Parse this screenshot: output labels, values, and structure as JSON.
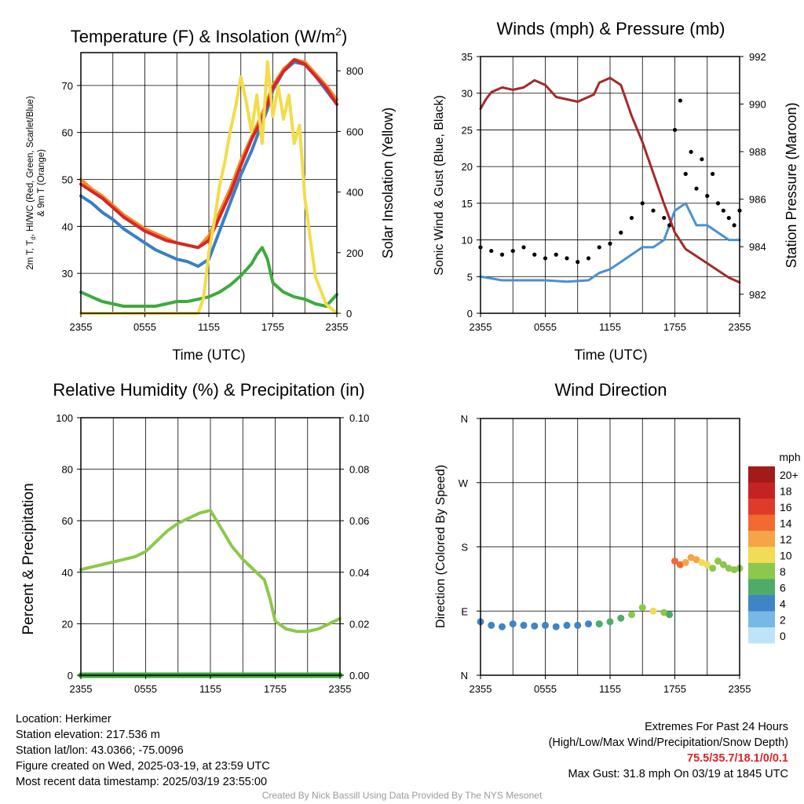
{
  "charts": {
    "temp": {
      "title_main": "Temperature (F) & Insolation (W/m",
      "title_sup": "2",
      "title_end": ")",
      "ylabel_line1": "2m T, T",
      "ylabel_sub": "d",
      "ylabel_line1_end": ", HI/WC (Red, Green, Scarlet/Blue)",
      "ylabel_line2": "& 9m T (Orange)",
      "ylabel_right": "Solar Insolation (Yellow)",
      "xlabel": "Time (UTC)"
    },
    "wind": {
      "title": "Winds (mph) & Pressure (mb)",
      "ylabel_left": "Sonic Wind & Gust (Blue, Black)",
      "ylabel_right": "Station Pressure (Maroon)",
      "xlabel": "Time (UTC)"
    },
    "rh": {
      "title": "Relative Humidity (%) & Precipitation (in)",
      "ylabel_left": "Percent & Precipitation"
    },
    "dir": {
      "title": "Wind Direction",
      "ylabel_left": "Direction (Colored By Speed)",
      "legend_title": "mph",
      "legend_labels": [
        "20+",
        "18",
        "16",
        "14",
        "12",
        "10",
        "8",
        "6",
        "4",
        "2",
        "0"
      ]
    }
  },
  "chart_data": [
    {
      "type": "line",
      "name": "temperature",
      "x_ticks": [
        "2355",
        "0555",
        "1155",
        "1755",
        "2355"
      ],
      "x_hours_range": [
        0,
        24
      ],
      "ylim": [
        21.5,
        77
      ],
      "y_ticks": [
        30,
        40,
        50,
        60,
        70
      ],
      "y2lim": [
        0,
        860
      ],
      "y2_ticks": [
        0,
        200,
        400,
        600,
        800
      ],
      "grid": true,
      "series": [
        {
          "color": "#3a7fc4",
          "axis": "left",
          "x": [
            0,
            1,
            2,
            3,
            4,
            5,
            6,
            7,
            8,
            9,
            10,
            11,
            12,
            13,
            14,
            15,
            16,
            17,
            17.5,
            18,
            19,
            20,
            21,
            22,
            23,
            24
          ],
          "y": [
            46.5,
            45,
            43,
            41.5,
            39.5,
            38,
            36.5,
            35,
            34,
            33,
            32.5,
            31.5,
            33,
            39,
            45,
            51,
            56,
            62,
            65,
            69,
            73,
            75,
            74.5,
            72,
            69,
            66
          ]
        },
        {
          "color": "#f28c28",
          "axis": "left",
          "x": [
            0,
            1,
            2,
            3,
            4,
            5,
            6,
            7,
            8,
            9,
            10,
            11,
            12,
            13,
            14,
            15,
            16,
            17,
            17.5,
            18,
            19,
            20,
            21,
            22,
            23,
            24
          ],
          "y": [
            50,
            48,
            46.5,
            44.5,
            42.5,
            41,
            39.5,
            38.5,
            37.5,
            36.5,
            36,
            35.5,
            38,
            43,
            48,
            54,
            59,
            64,
            67,
            70,
            73.5,
            75.5,
            75,
            72.5,
            70,
            67
          ]
        },
        {
          "color": "#d62728",
          "axis": "left",
          "x": [
            0,
            1,
            2,
            3,
            4,
            5,
            6,
            7,
            8,
            9,
            10,
            11,
            12,
            13,
            14,
            15,
            16,
            17,
            17.5,
            18,
            19,
            20,
            21,
            22,
            23,
            24
          ],
          "y": [
            49,
            47.5,
            46,
            44,
            42,
            40.5,
            39,
            38,
            37,
            36.5,
            36,
            35.5,
            37,
            42,
            47,
            53,
            58.5,
            63,
            66,
            69.5,
            73,
            75.5,
            74.5,
            72,
            69.5,
            66
          ]
        },
        {
          "color": "#3cab3c",
          "axis": "left",
          "x": [
            0,
            1,
            2,
            3,
            4,
            5,
            6,
            7,
            8,
            9,
            10,
            11,
            12,
            13,
            14,
            15,
            16,
            16.5,
            17,
            17.5,
            18,
            19,
            20,
            21,
            22,
            23,
            24
          ],
          "y": [
            26,
            25,
            24,
            23.5,
            23,
            23,
            23,
            23,
            23.5,
            24,
            24,
            24.5,
            25,
            26,
            27.5,
            29.5,
            32,
            34,
            35.5,
            33,
            28,
            26,
            25,
            24.5,
            23.5,
            23,
            25.5
          ]
        },
        {
          "color": "#f2dc4a",
          "axis": "right",
          "x": [
            0,
            11,
            11.5,
            12,
            12.5,
            13,
            13.5,
            14,
            14.5,
            15,
            15.5,
            16,
            16.5,
            17,
            17.5,
            18,
            18.5,
            19,
            19.5,
            20,
            20.5,
            21,
            21.5,
            22,
            23,
            24
          ],
          "y": [
            0,
            0,
            50,
            200,
            300,
            420,
            500,
            600,
            680,
            780,
            700,
            600,
            720,
            560,
            830,
            650,
            750,
            640,
            720,
            560,
            620,
            380,
            250,
            120,
            30,
            0
          ]
        }
      ]
    },
    {
      "type": "line",
      "name": "winds-pressure",
      "x_ticks": [
        "2355",
        "0555",
        "1155",
        "1755",
        "2355"
      ],
      "x_hours_range": [
        0,
        24
      ],
      "ylim": [
        0,
        35
      ],
      "y_ticks": [
        0,
        5,
        10,
        15,
        20,
        25,
        30,
        35
      ],
      "y2lim": [
        981.2,
        992
      ],
      "y2_ticks": [
        982,
        984,
        986,
        988,
        990,
        992
      ],
      "grid": true,
      "series": [
        {
          "color": "#4a90d0",
          "axis": "left",
          "type": "line",
          "x": [
            0,
            2,
            4,
            6,
            8,
            10,
            11,
            12,
            13,
            14,
            15,
            16,
            17,
            18,
            19,
            20,
            21,
            22,
            23,
            24
          ],
          "y": [
            5,
            4.5,
            4.5,
            4.5,
            4.3,
            4.5,
            5.5,
            6,
            7,
            8,
            9,
            9,
            10,
            14,
            15,
            12,
            12,
            11,
            10,
            10
          ]
        },
        {
          "color": "#000000",
          "axis": "left",
          "type": "scatter",
          "x": [
            0,
            1,
            2,
            3,
            4,
            5,
            6,
            7,
            8,
            9,
            10,
            11,
            12,
            13,
            14,
            15,
            16,
            17,
            17.5,
            18,
            18.5,
            19,
            19.5,
            20,
            20.5,
            21,
            21.5,
            22,
            22.5,
            23,
            23.5,
            24
          ],
          "y": [
            9,
            8.5,
            8,
            8.5,
            9,
            8,
            7.5,
            8,
            7.5,
            7,
            7.5,
            9,
            9.5,
            11,
            13,
            15,
            14,
            13,
            12,
            25,
            29,
            19,
            22,
            17,
            21,
            16,
            19,
            15,
            14,
            13,
            12,
            14
          ]
        },
        {
          "color": "#a52a2a",
          "axis": "right",
          "type": "line",
          "x": [
            0,
            0.5,
            1,
            2,
            3,
            4,
            5,
            6,
            7,
            8,
            9,
            10,
            10.5,
            11,
            12,
            13,
            14,
            15,
            16,
            17,
            18,
            19,
            20,
            21,
            22,
            23,
            24
          ],
          "y": [
            989.8,
            990.2,
            990.5,
            990.7,
            990.6,
            990.7,
            991,
            990.8,
            990.3,
            990.2,
            990.1,
            990.3,
            990.4,
            990.9,
            991.1,
            990.8,
            989.5,
            988.4,
            987.1,
            985.8,
            984.6,
            983.9,
            983.6,
            983.3,
            983,
            982.7,
            982.5
          ]
        }
      ]
    },
    {
      "type": "line",
      "name": "rh-precip",
      "x_ticks": [
        "2355",
        "0555",
        "1155",
        "1755",
        "2355"
      ],
      "x_hours_range": [
        0,
        24
      ],
      "ylim": [
        0,
        100
      ],
      "y_ticks": [
        0,
        20,
        40,
        60,
        80,
        100
      ],
      "y2lim": [
        0,
        0.1
      ],
      "y2_ticks": [
        "0.00",
        "0.02",
        "0.04",
        "0.06",
        "0.08",
        "0.10"
      ],
      "grid": true,
      "series": [
        {
          "color": "#8cc84b",
          "axis": "left",
          "x": [
            0,
            1,
            2,
            3,
            4,
            5,
            6,
            7,
            8,
            9,
            10,
            11,
            12,
            13,
            14,
            15,
            16,
            17,
            17.5,
            18,
            19,
            20,
            21,
            22,
            23,
            24
          ],
          "y": [
            41,
            42,
            43,
            44,
            45,
            46,
            48,
            52,
            56,
            59,
            61,
            63,
            64,
            57,
            50,
            45,
            41,
            37,
            30,
            21,
            18,
            17,
            17,
            18,
            20,
            22
          ]
        },
        {
          "color": "#3aa83a",
          "axis": "right",
          "x": [
            0,
            24
          ],
          "y": [
            0,
            0
          ]
        }
      ]
    },
    {
      "type": "scatter",
      "name": "wind-direction",
      "x_ticks": [
        "2355",
        "0555",
        "1155",
        "1755",
        "2355"
      ],
      "x_hours_range": [
        0,
        24
      ],
      "ylim": [
        0,
        360
      ],
      "y_ticks": [
        "N",
        "E",
        "S",
        "W",
        "N"
      ],
      "grid": true,
      "series": [
        {
          "axis": "left",
          "x": [
            0,
            1,
            2,
            3,
            4,
            5,
            6,
            7,
            8,
            9,
            10,
            11,
            12,
            13,
            14,
            15,
            16,
            17,
            17.5,
            18,
            18.5,
            19,
            19.5,
            20,
            20.5,
            21,
            21.5,
            22,
            22.5,
            23,
            23.5,
            24
          ],
          "y": [
            75,
            70,
            68,
            72,
            70,
            69,
            70,
            68,
            70,
            70,
            72,
            72,
            75,
            80,
            85,
            95,
            90,
            88,
            85,
            160,
            155,
            158,
            165,
            162,
            158,
            155,
            150,
            160,
            155,
            150,
            148,
            150
          ],
          "speed": [
            4,
            4,
            4,
            4,
            4,
            4,
            4,
            4,
            4,
            5,
            5,
            6,
            6,
            7,
            8,
            9,
            10,
            8,
            7,
            14,
            15,
            12,
            13,
            12,
            11,
            10,
            9,
            8,
            9,
            8,
            8,
            8
          ]
        }
      ]
    }
  ],
  "info_left": [
    "Location: Herkimer",
    "Station elevation: 217.536 m",
    "Station lat/lon: 43.0366; -75.0096",
    "Figure created on Wed, 2025-03-19, at 23:59 UTC",
    "Most recent data timestamp: 2025/03/19 23:55:00"
  ],
  "info_right": {
    "line1": "Extremes For Past 24 Hours",
    "line2": "(High/Low/Max Wind/Precipitation/Snow Depth)",
    "extremes": "75.5/35.7/18.1/0/0.1",
    "gust": "Max Gust: 31.8 mph On 03/19 at 1845 UTC"
  },
  "credit": "Created By Nick Bassill Using Data Provided By The NYS Mesonet",
  "colors": {
    "speed_scale": [
      "#a31a1a",
      "#c42323",
      "#e03a2a",
      "#f26a30",
      "#f5a447",
      "#f0dc55",
      "#8cc84b",
      "#4fab6a",
      "#3d85c6",
      "#78b8e4",
      "#bfe3f7"
    ]
  }
}
